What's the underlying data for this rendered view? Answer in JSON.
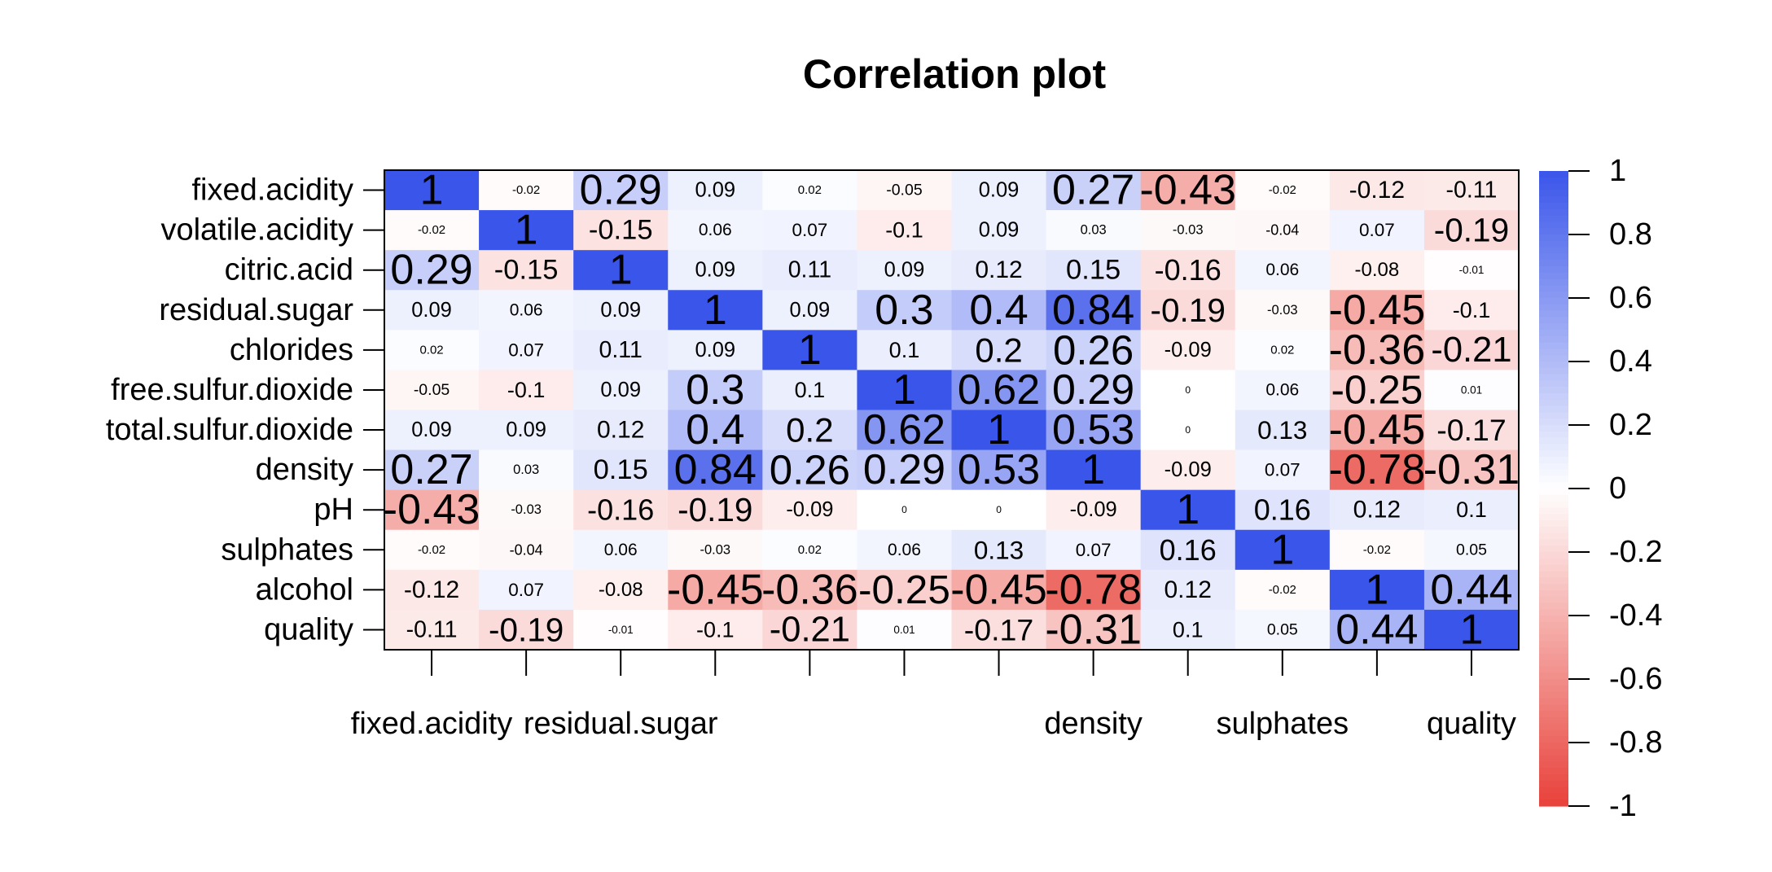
{
  "chart_data": {
    "type": "heatmap",
    "title": "Correlation plot",
    "row_labels": [
      "fixed.acidity",
      "volatile.acidity",
      "citric.acid",
      "residual.sugar",
      "chlorides",
      "free.sulfur.dioxide",
      "total.sulfur.dioxide",
      "density",
      "pH",
      "sulphates",
      "alcohol",
      "quality"
    ],
    "x_tick_labels": [
      "fixed.acidity",
      "",
      "residual.sugar",
      "",
      "",
      "",
      "",
      "density",
      "",
      "sulphates",
      "",
      "quality"
    ],
    "values": [
      [
        1,
        -0.02,
        0.29,
        0.09,
        0.02,
        -0.05,
        0.09,
        0.27,
        -0.43,
        -0.02,
        -0.12,
        -0.11
      ],
      [
        -0.02,
        1,
        -0.15,
        0.06,
        0.07,
        -0.1,
        0.09,
        0.03,
        -0.03,
        -0.04,
        0.07,
        -0.19
      ],
      [
        0.29,
        -0.15,
        1,
        0.09,
        0.11,
        0.09,
        0.12,
        0.15,
        -0.16,
        0.06,
        -0.08,
        -0.01
      ],
      [
        0.09,
        0.06,
        0.09,
        1,
        0.09,
        0.3,
        0.4,
        0.84,
        -0.19,
        -0.03,
        -0.45,
        -0.1
      ],
      [
        0.02,
        0.07,
        0.11,
        0.09,
        1,
        0.1,
        0.2,
        0.26,
        -0.09,
        0.02,
        -0.36,
        -0.21
      ],
      [
        -0.05,
        -0.1,
        0.09,
        0.3,
        0.1,
        1,
        0.62,
        0.29,
        0,
        0.06,
        -0.25,
        0.01
      ],
      [
        0.09,
        0.09,
        0.12,
        0.4,
        0.2,
        0.62,
        1,
        0.53,
        0,
        0.13,
        -0.45,
        -0.17
      ],
      [
        0.27,
        0.03,
        0.15,
        0.84,
        0.26,
        0.29,
        0.53,
        1,
        -0.09,
        0.07,
        -0.78,
        -0.31
      ],
      [
        -0.43,
        -0.03,
        -0.16,
        -0.19,
        -0.09,
        0,
        0,
        -0.09,
        1,
        0.16,
        0.12,
        0.1
      ],
      [
        -0.02,
        -0.04,
        0.06,
        -0.03,
        0.02,
        0.06,
        0.13,
        0.07,
        0.16,
        1,
        -0.02,
        0.05
      ],
      [
        -0.12,
        0.07,
        -0.08,
        -0.45,
        -0.36,
        -0.25,
        -0.45,
        -0.78,
        0.12,
        -0.02,
        1,
        0.44
      ],
      [
        -0.11,
        -0.19,
        -0.01,
        -0.1,
        -0.21,
        0.01,
        -0.17,
        -0.31,
        0.1,
        0.05,
        0.44,
        1
      ]
    ],
    "color_scale": {
      "low": "#e8413a",
      "mid": "#ffffff",
      "high": "#3a55ea",
      "range": [
        -1,
        1
      ],
      "tick_labels": [
        "1",
        "0.8",
        "0.6",
        "0.4",
        "0.2",
        "0",
        "-0.2",
        "-0.4",
        "-0.6",
        "-0.8",
        "-1"
      ],
      "tick_values": [
        1,
        0.8,
        0.6,
        0.4,
        0.2,
        0,
        -0.2,
        -0.4,
        -0.6,
        -0.8,
        -1
      ]
    }
  }
}
